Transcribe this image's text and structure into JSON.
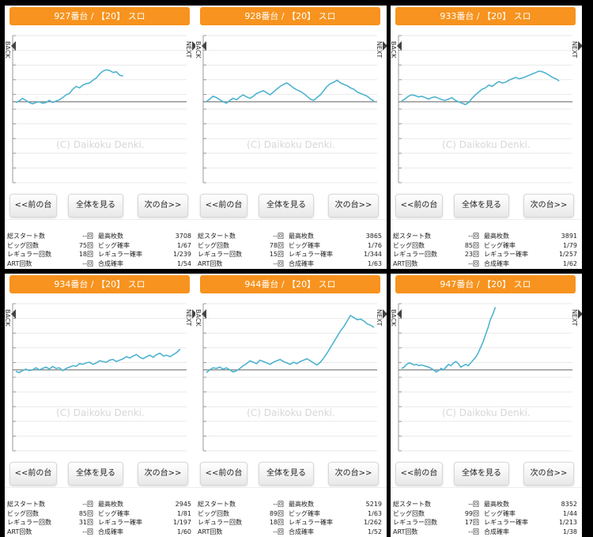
{
  "buttons": {
    "prev": "<<前の台",
    "all": "全体を見る",
    "next": "次の台>>"
  },
  "side": {
    "back": "BACK",
    "next": "NEXT"
  },
  "watermark": "(C) Daikoku Denki.",
  "labels": {
    "total_start": "総スタート数",
    "big": "ビッグ回数",
    "regular": "レギュラー回数",
    "art": "ART回数",
    "max_medals": "最高枚数",
    "big_prob": "ビッグ確率",
    "reg_prob": "レギュラー確率",
    "combined_prob": "合成確率"
  },
  "panels": [
    {
      "title": "927番台 / 【20】 スロ",
      "total_start": "--回",
      "big": "75回",
      "regular": "18回",
      "art": "--回",
      "max_medals": "3708",
      "big_prob": "1/67",
      "reg_prob": "1/239",
      "combined_prob": "1/54"
    },
    {
      "title": "928番台 / 【20】 スロ",
      "total_start": "--回",
      "big": "78回",
      "regular": "15回",
      "art": "--回",
      "max_medals": "3865",
      "big_prob": "1/76",
      "reg_prob": "1/344",
      "combined_prob": "1/63"
    },
    {
      "title": "933番台 / 【20】 スロ",
      "total_start": "--回",
      "big": "85回",
      "regular": "23回",
      "art": "--回",
      "max_medals": "3891",
      "big_prob": "1/79",
      "reg_prob": "1/257",
      "combined_prob": "1/62"
    },
    {
      "title": "934番台 / 【20】 スロ",
      "total_start": "--回",
      "big": "85回",
      "regular": "31回",
      "art": "--回",
      "max_medals": "2945",
      "big_prob": "1/81",
      "reg_prob": "1/197",
      "combined_prob": "1/60"
    },
    {
      "title": "944番台 / 【20】 スロ",
      "total_start": "--回",
      "big": "89回",
      "regular": "18回",
      "art": "--回",
      "max_medals": "5219",
      "big_prob": "1/63",
      "reg_prob": "1/262",
      "combined_prob": "1/52"
    },
    {
      "title": "947番台 / 【20】 スロ",
      "total_start": "--回",
      "big": "99回",
      "regular": "17回",
      "art": "--回",
      "max_medals": "8352",
      "big_prob": "1/44",
      "reg_prob": "1/213",
      "combined_prob": "1/38"
    }
  ],
  "colors": {
    "header": "#f7931e",
    "line": "#4fb3cf",
    "grid": "#e9e9e9",
    "baseline": "#666666"
  },
  "chart_data": [
    {
      "type": "line",
      "y": [
        -1,
        1,
        5,
        2,
        -1,
        -3,
        -1,
        0,
        -2,
        -1,
        2,
        -1,
        1,
        3,
        6,
        10,
        12,
        18,
        22,
        20,
        24,
        26,
        27,
        31,
        34,
        40,
        44,
        46,
        45,
        42,
        43,
        38,
        37
      ]
    },
    {
      "type": "line",
      "y": [
        0,
        4,
        8,
        6,
        3,
        0,
        -2,
        2,
        5,
        3,
        7,
        10,
        7,
        5,
        8,
        12,
        14,
        16,
        13,
        10,
        14,
        18,
        22,
        25,
        27,
        24,
        20,
        17,
        15,
        12,
        8,
        4,
        2,
        6,
        10,
        16,
        22,
        26,
        28,
        31,
        27,
        25,
        23,
        20,
        18,
        14,
        12,
        10,
        8,
        4,
        1
      ]
    },
    {
      "type": "line",
      "y": [
        1,
        4,
        8,
        10,
        9,
        7,
        8,
        6,
        4,
        6,
        7,
        5,
        3,
        2,
        4,
        6,
        2,
        0,
        -2,
        -4,
        -1,
        5,
        10,
        14,
        18,
        20,
        24,
        22,
        26,
        29,
        27,
        28,
        31,
        33,
        35,
        33,
        34,
        36,
        38,
        40,
        42,
        44,
        43,
        41,
        38,
        35,
        33,
        30
      ]
    },
    {
      "type": "line",
      "y": [
        -2,
        -4,
        -1,
        1,
        -1,
        0,
        3,
        0,
        2,
        4,
        1,
        5,
        2,
        3,
        -1,
        2,
        4,
        6,
        5,
        9,
        8,
        10,
        11,
        8,
        10,
        13,
        12,
        11,
        14,
        15,
        12,
        14,
        16,
        19,
        17,
        20,
        22,
        18,
        16,
        19,
        21,
        18,
        22,
        24,
        20,
        21,
        19,
        22,
        25,
        30
      ]
    },
    {
      "type": "line",
      "y": [
        -4,
        0,
        3,
        2,
        4,
        1,
        3,
        0,
        -3,
        -1,
        2,
        6,
        9,
        13,
        11,
        9,
        14,
        12,
        10,
        8,
        11,
        13,
        15,
        12,
        10,
        8,
        11,
        9,
        12,
        14,
        16,
        13,
        10,
        7,
        11,
        17,
        24,
        32,
        40,
        48,
        56,
        62,
        70,
        78,
        75,
        72,
        73,
        70,
        66,
        64,
        61
      ]
    },
    {
      "type": "line",
      "y": [
        2,
        4,
        8,
        10,
        9,
        7,
        8,
        6,
        7,
        6,
        5,
        4,
        2,
        0,
        -3,
        -1,
        2,
        0,
        4,
        8,
        6,
        10,
        12,
        9,
        4,
        6,
        8,
        6,
        10,
        14,
        18,
        24,
        32,
        40,
        50,
        60,
        72,
        80,
        90
      ]
    }
  ]
}
